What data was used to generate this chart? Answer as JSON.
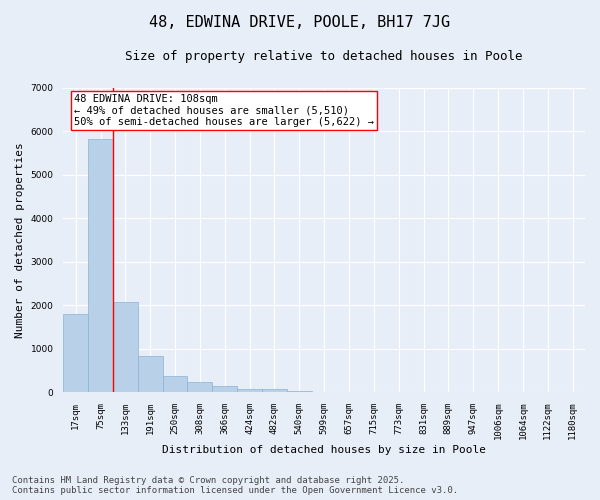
{
  "title": "48, EDWINA DRIVE, POOLE, BH17 7JG",
  "subtitle": "Size of property relative to detached houses in Poole",
  "xlabel": "Distribution of detached houses by size in Poole",
  "ylabel": "Number of detached properties",
  "bar_color": "#b8d0e8",
  "bar_edge_color": "#8ab4d4",
  "background_color": "#e8eef8",
  "grid_color": "#ffffff",
  "categories": [
    "17sqm",
    "75sqm",
    "133sqm",
    "191sqm",
    "250sqm",
    "308sqm",
    "366sqm",
    "424sqm",
    "482sqm",
    "540sqm",
    "599sqm",
    "657sqm",
    "715sqm",
    "773sqm",
    "831sqm",
    "889sqm",
    "947sqm",
    "1006sqm",
    "1064sqm",
    "1122sqm",
    "1180sqm"
  ],
  "values": [
    1800,
    5820,
    2080,
    840,
    370,
    230,
    130,
    80,
    80,
    30,
    10,
    0,
    0,
    0,
    0,
    0,
    0,
    0,
    0,
    0,
    0
  ],
  "ylim": [
    0,
    7000
  ],
  "yticks": [
    0,
    1000,
    2000,
    3000,
    4000,
    5000,
    6000,
    7000
  ],
  "property_label": "48 EDWINA DRIVE: 108sqm",
  "annotation_line1": "← 49% of detached houses are smaller (5,510)",
  "annotation_line2": "50% of semi-detached houses are larger (5,622) →",
  "vline_x_index": 1.5,
  "footer_line1": "Contains HM Land Registry data © Crown copyright and database right 2025.",
  "footer_line2": "Contains public sector information licensed under the Open Government Licence v3.0.",
  "title_fontsize": 11,
  "subtitle_fontsize": 9,
  "ylabel_fontsize": 8,
  "xlabel_fontsize": 8,
  "tick_fontsize": 6.5,
  "annotation_fontsize": 7.5,
  "footer_fontsize": 6.5
}
